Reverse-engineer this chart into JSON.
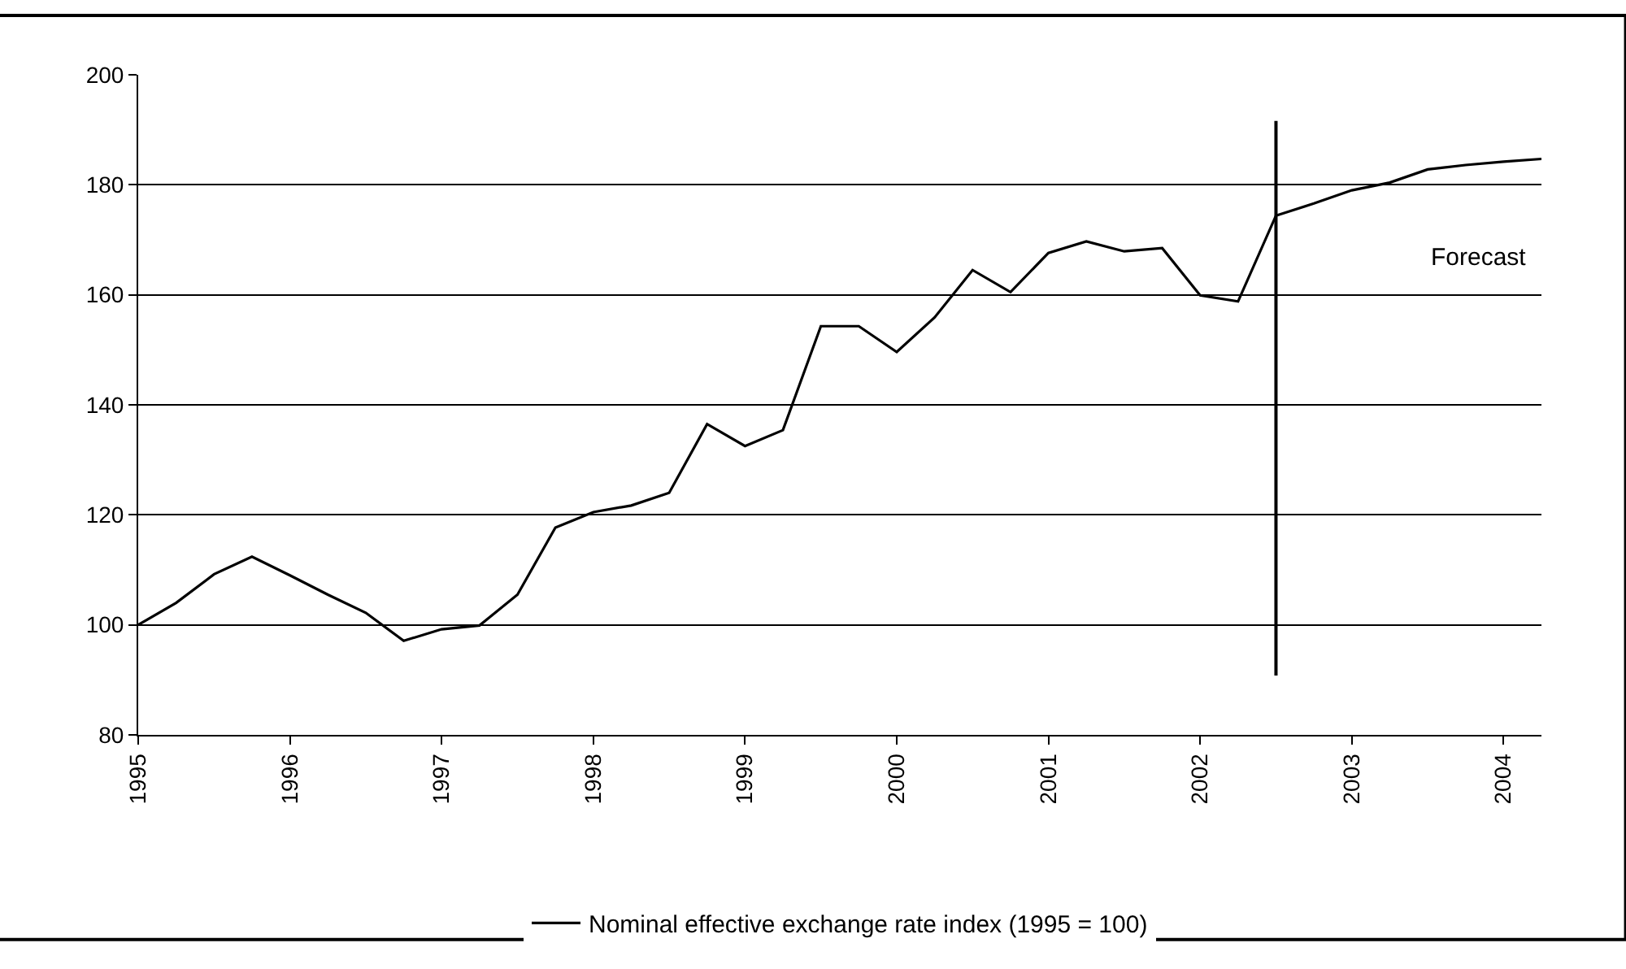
{
  "chart_data": {
    "type": "line",
    "x": [
      1995,
      1995.25,
      1995.5,
      1995.75,
      1996,
      1996.25,
      1996.5,
      1996.75,
      1997,
      1997.25,
      1997.5,
      1997.75,
      1998,
      1998.25,
      1998.5,
      1998.75,
      1999,
      1999.25,
      1999.5,
      1999.75,
      2000,
      2000.25,
      2000.5,
      2000.75,
      2001,
      2001.25,
      2001.5,
      2001.75,
      2002,
      2002.25,
      2002.5,
      2002.75,
      2003,
      2003.25,
      2003.5,
      2003.75,
      2004,
      2004.25
    ],
    "series": [
      {
        "name": "Nominal effective exchange rate index (1995 = 100)",
        "color": "#000000",
        "values": [
          100,
          104,
          109.2,
          112.4,
          109,
          105.5,
          102.2,
          97.1,
          99.2,
          99.9,
          105.5,
          117.7,
          120.5,
          121.7,
          124,
          136.5,
          132.5,
          135.4,
          154.3,
          154.3,
          149.6,
          155.9,
          164.5,
          160.5,
          167.6,
          169.7,
          167.9,
          168.5,
          159.9,
          158.8,
          174.4,
          176.6,
          179,
          180.4,
          182.8,
          183.6,
          184.2,
          184.7
        ]
      }
    ],
    "xlim": [
      1995,
      2004.25
    ],
    "xticks": [
      1995,
      1996,
      1997,
      1998,
      1999,
      2000,
      2001,
      2002,
      2003,
      2004
    ],
    "ylim": [
      80,
      200
    ],
    "yticks": [
      80,
      100,
      120,
      140,
      160,
      180,
      200
    ],
    "grid": "y",
    "legend": "bottom",
    "marker": "none",
    "line_style": "solid",
    "ref_lines": [
      {
        "axis": "x",
        "value": 2002.5,
        "color": "#000000"
      }
    ],
    "annotations": [
      "Forecast"
    ]
  }
}
